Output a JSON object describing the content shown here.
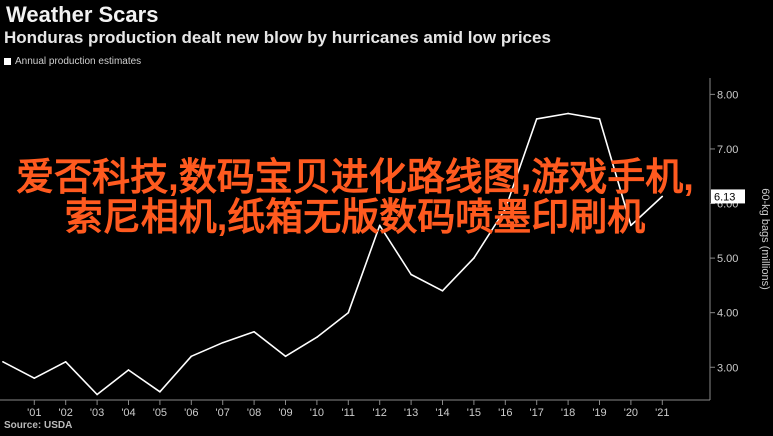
{
  "header": {
    "title": "Weather Scars",
    "subtitle": "Honduras production dealt new blow by hurricanes amid low prices"
  },
  "legend": {
    "label": "Annual production estimates"
  },
  "footer": {
    "source": "Source: USDA"
  },
  "overlay": {
    "text": "爱否科技,数码宝贝进化路线图,游戏手机,索尼相机,纸箱无版数码喷墨印刷机"
  },
  "colors": {
    "background": "#000000",
    "line": "#ffffff",
    "axis": "#888888",
    "overlay": "#ff5a1f"
  },
  "chart_data": {
    "type": "line",
    "title": "Weather Scars",
    "subtitle": "Honduras production dealt new blow by hurricanes amid low prices",
    "ylabel": "60-kg bags (millions)",
    "xlabel": "",
    "x": [
      2000,
      2001,
      2002,
      2003,
      2004,
      2005,
      2006,
      2007,
      2008,
      2009,
      2010,
      2011,
      2012,
      2013,
      2014,
      2015,
      2016,
      2017,
      2018,
      2019,
      2020,
      2021
    ],
    "x_tick_labels": [
      "'01",
      "'02",
      "'03",
      "'04",
      "'05",
      "'06",
      "'07",
      "'08",
      "'09",
      "'10",
      "'11",
      "'12",
      "'13",
      "'14",
      "'15",
      "'16",
      "'17",
      "'18",
      "'19",
      "'20",
      "'21"
    ],
    "series": [
      {
        "name": "Annual production estimates",
        "values": [
          3.1,
          2.8,
          3.1,
          2.5,
          2.95,
          2.55,
          3.2,
          3.45,
          3.65,
          3.2,
          3.55,
          4.0,
          5.6,
          4.7,
          4.4,
          5.0,
          5.9,
          7.55,
          7.65,
          7.55,
          5.6,
          6.13
        ]
      }
    ],
    "ylim": [
      2.4,
      8.3
    ],
    "y_ticks": [
      3.0,
      4.0,
      5.0,
      6.0,
      7.0,
      8.0
    ],
    "y_tick_labels": [
      "3.00",
      "4.00",
      "5.00",
      "6.00",
      "7.00",
      "8.00"
    ],
    "last_value_label": "6.13",
    "grid": false,
    "legend_position": "top-left",
    "y_axis_position": "right"
  }
}
